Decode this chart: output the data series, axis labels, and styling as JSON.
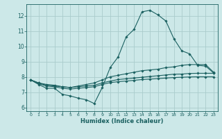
{
  "xlabel": "Humidex (Indice chaleur)",
  "bg_color": "#cce8e8",
  "grid_color": "#aacccc",
  "line_color": "#1a6060",
  "xlim": [
    -0.5,
    23.5
  ],
  "ylim": [
    5.75,
    12.75
  ],
  "yticks": [
    6,
    7,
    8,
    9,
    10,
    11,
    12
  ],
  "xticks": [
    0,
    1,
    2,
    3,
    4,
    5,
    6,
    7,
    8,
    9,
    10,
    11,
    12,
    13,
    14,
    15,
    16,
    17,
    18,
    19,
    20,
    21,
    22,
    23
  ],
  "series": [
    {
      "x": [
        0,
        1,
        2,
        3,
        4,
        5,
        6,
        7,
        8,
        9,
        10,
        11,
        12,
        13,
        14,
        15,
        16,
        17,
        18,
        19,
        20,
        21,
        22,
        23
      ],
      "y": [
        7.8,
        7.5,
        7.25,
        7.25,
        6.85,
        6.75,
        6.6,
        6.5,
        6.25,
        7.3,
        8.6,
        9.3,
        10.6,
        11.1,
        12.25,
        12.35,
        12.05,
        11.65,
        10.5,
        9.7,
        9.5,
        8.75,
        8.7,
        8.25
      ]
    },
    {
      "x": [
        0,
        1,
        2,
        3,
        4,
        5,
        6,
        7,
        8,
        9,
        10,
        11,
        12,
        13,
        14,
        15,
        16,
        17,
        18,
        19,
        20,
        21,
        22,
        23
      ],
      "y": [
        7.8,
        7.6,
        7.5,
        7.45,
        7.35,
        7.3,
        7.4,
        7.5,
        7.6,
        7.8,
        8.0,
        8.1,
        8.2,
        8.3,
        8.4,
        8.45,
        8.5,
        8.6,
        8.65,
        8.75,
        8.8,
        8.8,
        8.8,
        8.3
      ]
    },
    {
      "x": [
        0,
        1,
        2,
        3,
        4,
        5,
        6,
        7,
        8,
        9,
        10,
        11,
        12,
        13,
        14,
        15,
        16,
        17,
        18,
        19,
        20,
        21,
        22,
        23
      ],
      "y": [
        7.8,
        7.6,
        7.45,
        7.4,
        7.35,
        7.3,
        7.35,
        7.4,
        7.45,
        7.6,
        7.72,
        7.82,
        7.87,
        7.92,
        7.97,
        8.02,
        8.07,
        8.12,
        8.17,
        8.18,
        8.22,
        8.23,
        8.23,
        8.23
      ]
    },
    {
      "x": [
        0,
        1,
        2,
        3,
        4,
        5,
        6,
        7,
        8,
        9,
        10,
        11,
        12,
        13,
        14,
        15,
        16,
        17,
        18,
        19,
        20,
        21,
        22,
        23
      ],
      "y": [
        7.8,
        7.55,
        7.4,
        7.35,
        7.25,
        7.2,
        7.25,
        7.3,
        7.35,
        7.5,
        7.62,
        7.68,
        7.72,
        7.77,
        7.82,
        7.85,
        7.88,
        7.92,
        7.95,
        7.97,
        7.99,
        8.0,
        8.0,
        8.0
      ]
    }
  ]
}
